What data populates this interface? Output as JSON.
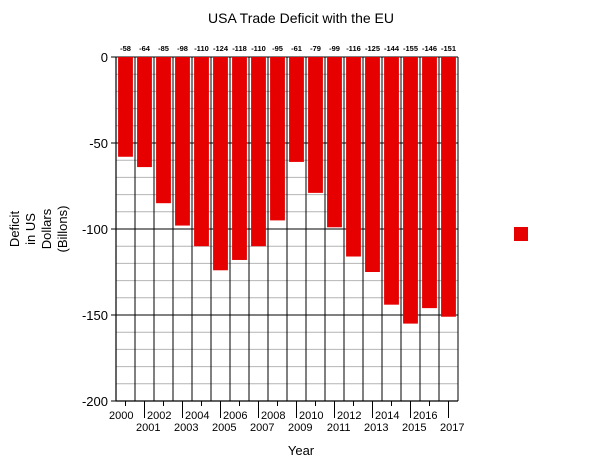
{
  "chart_data": {
    "type": "bar",
    "title": "USA Trade Deficit with the EU",
    "xlabel": "Year",
    "ylabel_lines": [
      "Deficit",
      "in US",
      "Dollars",
      "(Billons)"
    ],
    "categories": [
      "2000",
      "2001",
      "2002",
      "2003",
      "2004",
      "2005",
      "2006",
      "2007",
      "2008",
      "2009",
      "2010",
      "2011",
      "2012",
      "2013",
      "2014",
      "2015",
      "2016",
      "2017"
    ],
    "series": [
      {
        "values": [
          -58,
          -64,
          -85,
          -98,
          -110,
          -124,
          -118,
          -110,
          -95,
          -61,
          -79,
          -99,
          -116,
          -125,
          -144,
          -155,
          -146,
          -151
        ],
        "data_labels": [
          "-58",
          "-64",
          "-85",
          "-98",
          "-110",
          "-124",
          "-118",
          "-110",
          "-95",
          "-61",
          "-79",
          "-99",
          "-116",
          "-125",
          "-144",
          "-155",
          "-146",
          "-151"
        ],
        "color": "#e60000"
      }
    ],
    "ylim": [
      -200,
      0
    ],
    "yticks": [
      0,
      -50,
      -100,
      -150,
      -200
    ],
    "ytick_labels": [
      "0",
      "-50",
      "-100",
      "-150",
      "-200"
    ],
    "minor_gridline_step": 10,
    "grid": true,
    "legend": {
      "position": "right",
      "swatch_color": "#e60000"
    }
  }
}
